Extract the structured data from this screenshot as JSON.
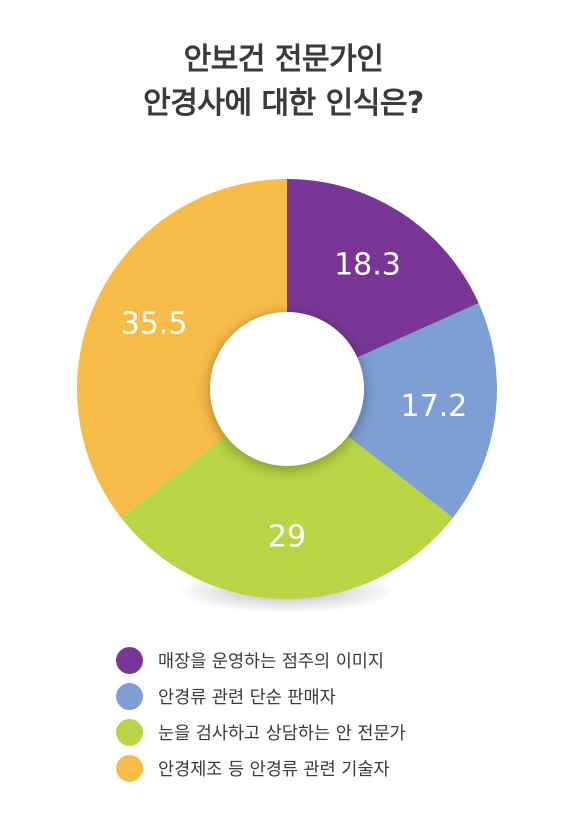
{
  "title": {
    "line1": "안보건 전문가인",
    "line2": "안경사에 대한 인식은?"
  },
  "chart_data": {
    "type": "pie",
    "title": "안보건 전문가인 안경사에 대한 인식은?",
    "donut": true,
    "start_angle_deg": 0,
    "direction": "clockwise",
    "categories": [
      "매장을 운영하는 점주의 이미지",
      "안경류 관련 단순 판매자",
      "눈을 검사하고 상담하는 안 전문가",
      "안경제조 등 안경류 관련 기술자"
    ],
    "values": [
      18.3,
      17.2,
      29,
      35.5
    ],
    "value_labels": [
      "18.3",
      "17.2",
      "29",
      "35.5"
    ],
    "colors": [
      "#7a3696",
      "#7e9fd3",
      "#b9d545",
      "#f7bb48"
    ],
    "legend_position": "bottom"
  }
}
